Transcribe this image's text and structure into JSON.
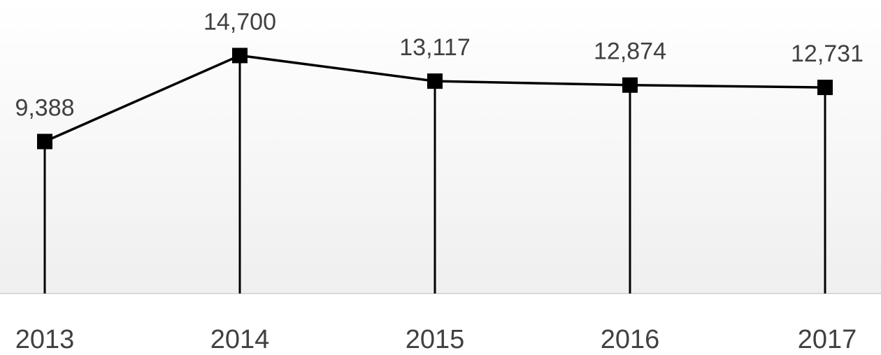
{
  "chart_data": {
    "type": "line",
    "categories": [
      "2013",
      "2014",
      "2015",
      "2016",
      "2017"
    ],
    "values": [
      9388,
      14700,
      13117,
      12874,
      12731
    ],
    "value_labels": [
      "9,388",
      "14,700",
      "13,117",
      "12,874",
      "12,731"
    ],
    "color": "#000000",
    "ylim": [
      0,
      18000
    ]
  }
}
